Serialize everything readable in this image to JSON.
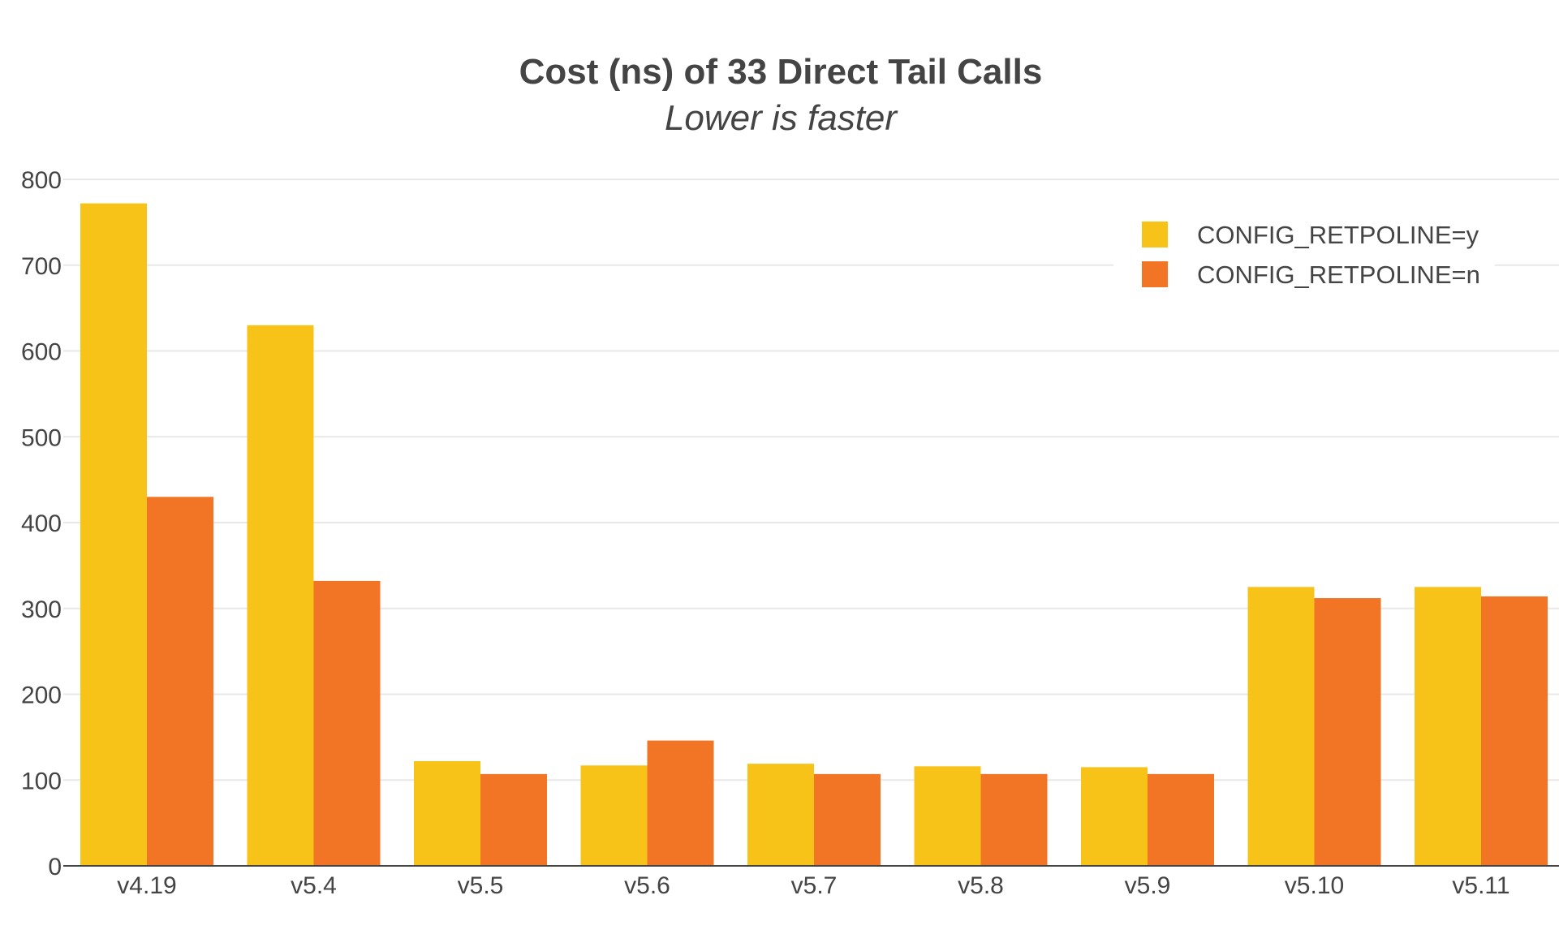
{
  "chart_data": {
    "type": "bar",
    "title": "Cost (ns) of 33 Direct Tail Calls",
    "subtitle": "Lower is faster",
    "xlabel": "",
    "ylabel": "",
    "categories": [
      "v4.19",
      "v5.4",
      "v5.5",
      "v5.6",
      "v5.7",
      "v5.8",
      "v5.9",
      "v5.10",
      "v5.11"
    ],
    "series": [
      {
        "name": "CONFIG_RETPOLINE=y",
        "color": "#f8c318",
        "values": [
          772,
          630,
          122,
          117,
          119,
          116,
          115,
          325,
          325
        ]
      },
      {
        "name": "CONFIG_RETPOLINE=n",
        "color": "#f27526",
        "values": [
          430,
          332,
          107,
          146,
          107,
          107,
          107,
          312,
          314
        ]
      }
    ],
    "ylim": [
      0,
      800
    ],
    "yticks": [
      0,
      100,
      200,
      300,
      400,
      500,
      600,
      700,
      800
    ],
    "grid": true,
    "legend_position": "top-right"
  }
}
